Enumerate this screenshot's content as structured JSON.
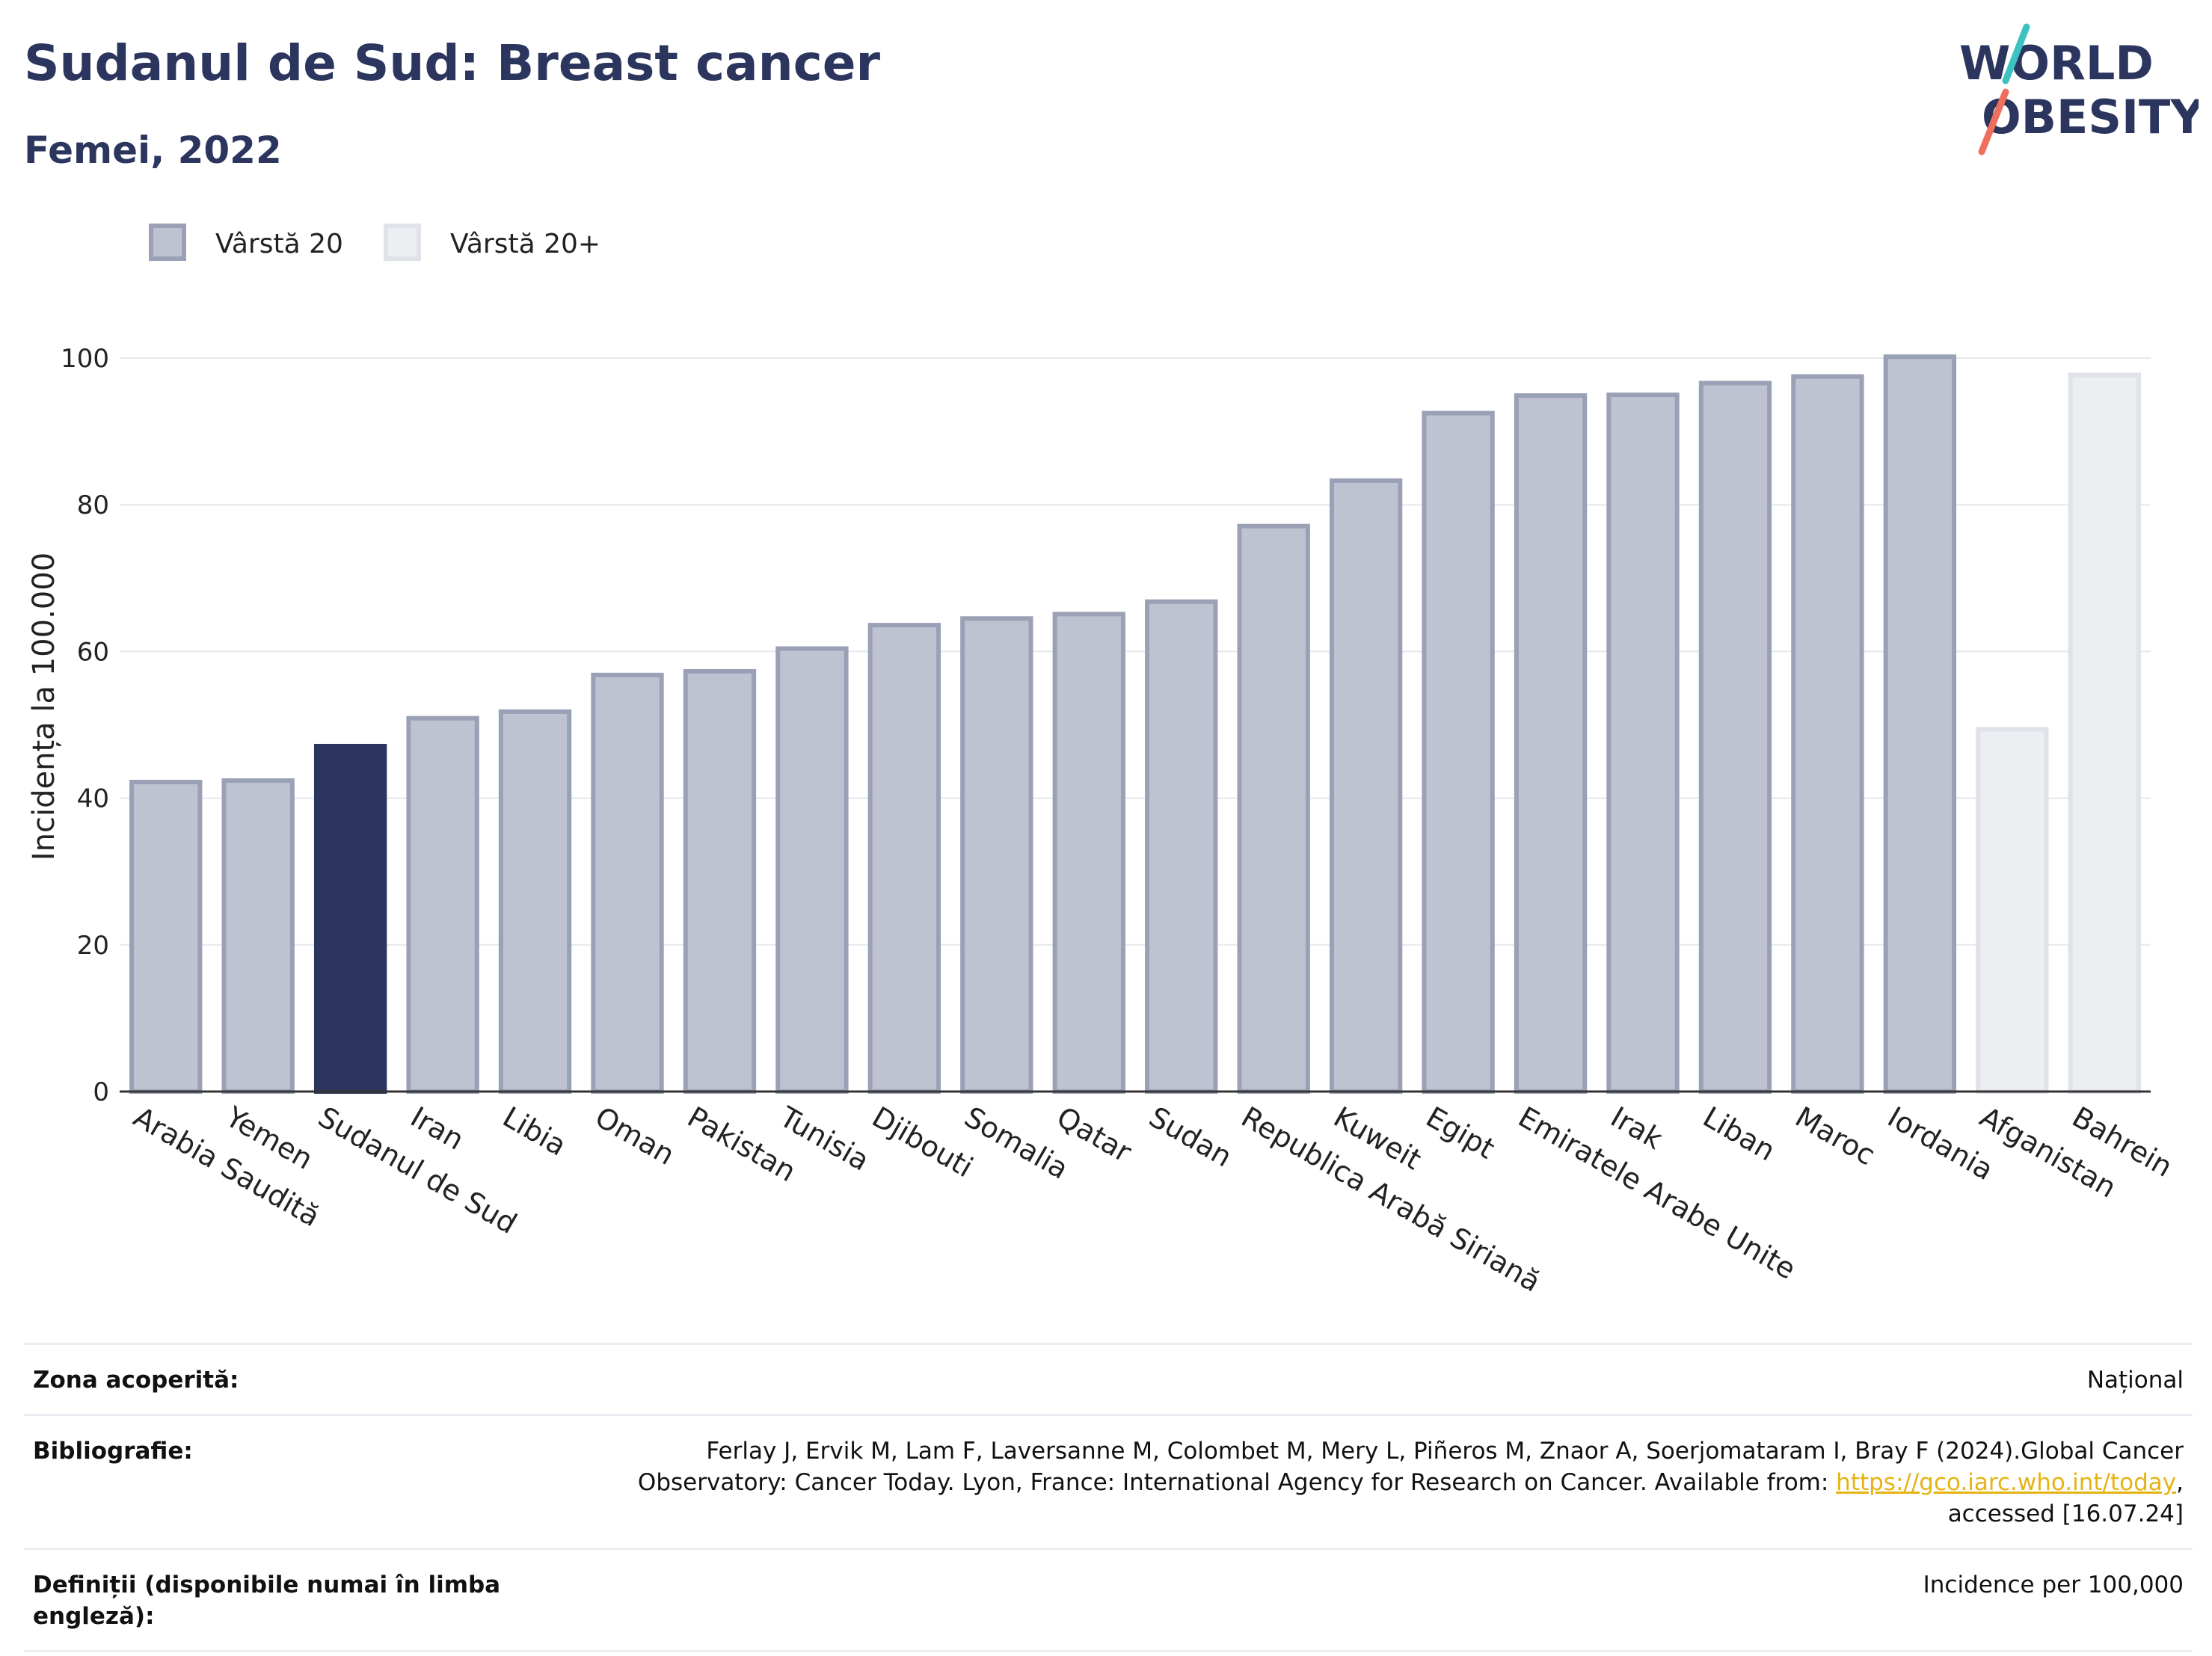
{
  "header": {
    "title": "Sudanul de Sud: Breast cancer",
    "subtitle": "Femei, 2022",
    "logo_line1": "WORLD",
    "logo_line2": "OBESITY"
  },
  "colors": {
    "highlight": "#2b355e",
    "age20_fill": "#bfc3d1",
    "age20_stroke": "#9aa0b5",
    "age20plus_fill": "#eceef2",
    "age20plus_stroke": "#dfe2e8",
    "grid": "#e6e8ee",
    "logo_teal": "#3cc2c0",
    "logo_coral": "#ef6f5e"
  },
  "chart_data": {
    "type": "bar",
    "ylabel": "Incidența la 100.000",
    "ylim": [
      0,
      105
    ],
    "yticks": [
      0,
      20,
      40,
      60,
      80,
      100
    ],
    "grid": true,
    "legend_position": "top-left",
    "legend": [
      {
        "label": "Vârstă 20",
        "series": "age20"
      },
      {
        "label": "Vârstă 20+",
        "series": "age20plus"
      }
    ],
    "categories": [
      "Arabia Saudită",
      "Yemen",
      "Sudanul de Sud",
      "Iran",
      "Libia",
      "Oman",
      "Pakistan",
      "Tunisia",
      "Djibouti",
      "Somalia",
      "Qatar",
      "Sudan",
      "Republica Arabă Siriană",
      "Kuweit",
      "Egipt",
      "Emiratele Arabe Unite",
      "Irak",
      "Liban",
      "Maroc",
      "Iordania",
      "Afganistan",
      "Bahrein"
    ],
    "values": [
      42.2,
      42.4,
      47.1,
      50.9,
      51.8,
      56.8,
      57.3,
      60.4,
      63.6,
      64.5,
      65.1,
      66.8,
      77.1,
      83.3,
      92.5,
      94.9,
      95.0,
      96.6,
      97.5,
      100.2,
      49.4,
      97.7
    ],
    "series_membership": [
      "age20",
      "age20",
      "highlight",
      "age20",
      "age20",
      "age20",
      "age20",
      "age20",
      "age20",
      "age20",
      "age20",
      "age20",
      "age20",
      "age20",
      "age20",
      "age20",
      "age20",
      "age20",
      "age20",
      "age20",
      "age20plus",
      "age20plus"
    ]
  },
  "info": {
    "zone_label": "Zona acoperită:",
    "zone_value": "Național",
    "biblio_label": "Bibliografie:",
    "biblio_text": "Ferlay J, Ervik M, Lam F, Laversanne M, Colombet M, Mery L, Piñeros M, Znaor A, Soerjomataram I, Bray F (2024).Global Cancer Observatory: Cancer Today. Lyon, France: International Agency for Research on Cancer. Available from:",
    "biblio_link": "https://gco.iarc.who.int/today",
    "biblio_tail": ", accessed [16.07.24]",
    "def_label": "Definiții (disponibile numai în limba engleză):",
    "def_value": "Incidence per 100,000"
  }
}
